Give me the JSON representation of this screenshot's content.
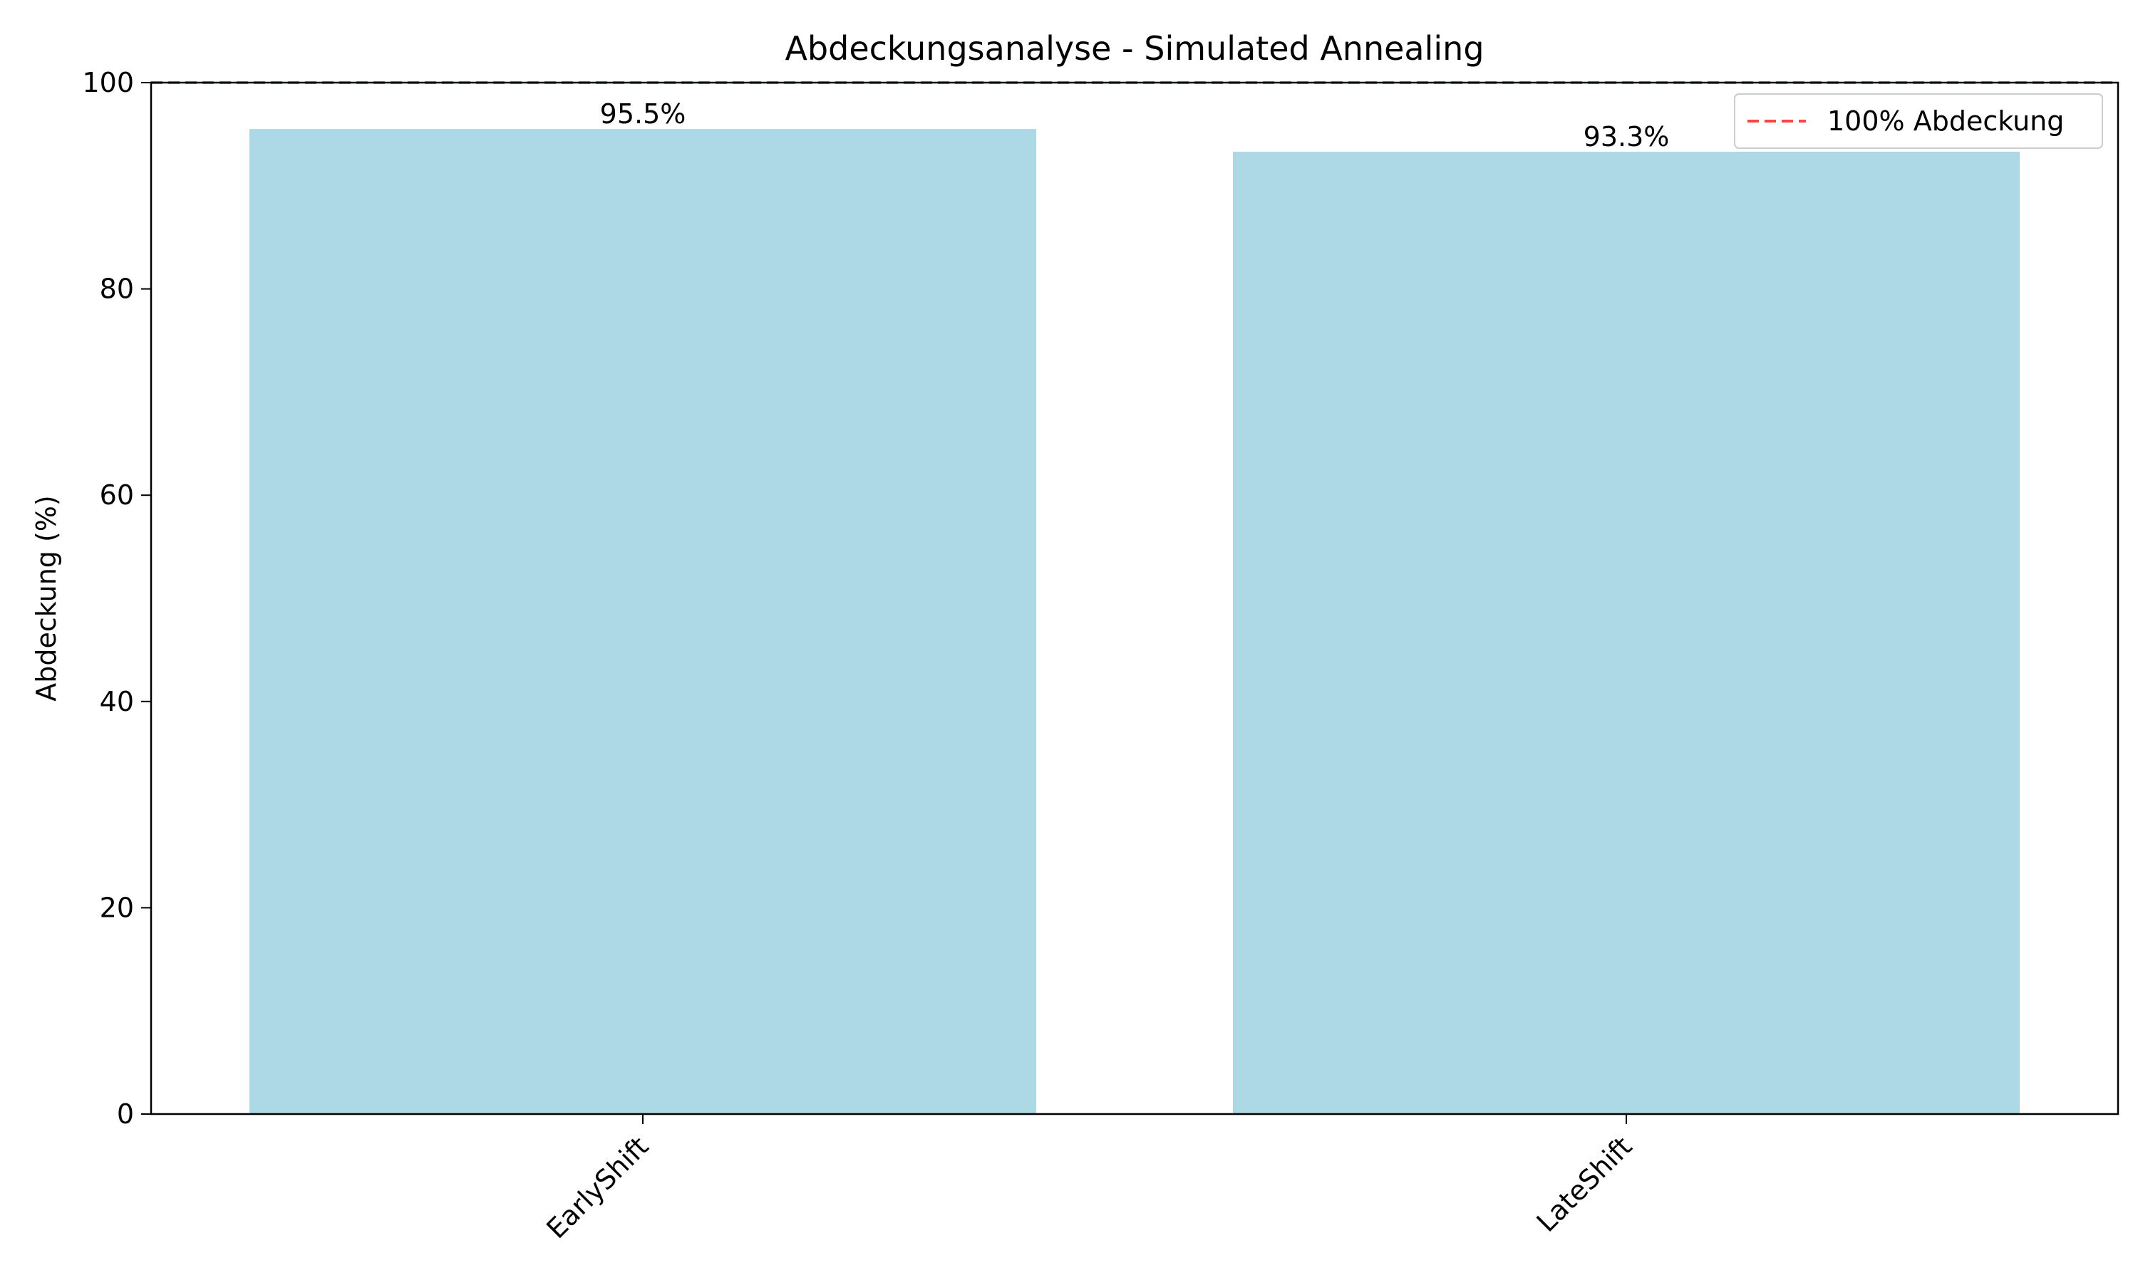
{
  "chart_data": {
    "type": "bar",
    "title": "Abdeckungsanalyse - Simulated Annealing",
    "xlabel": "",
    "ylabel": "Abdeckung (%)",
    "categories": [
      "EarlyShift",
      "LateShift"
    ],
    "values": [
      95.5,
      93.3
    ],
    "value_labels": [
      "95.5%",
      "93.3%"
    ],
    "ylim": [
      0,
      100
    ],
    "yticks": [
      0,
      20,
      40,
      60,
      80,
      100
    ],
    "ytick_labels": [
      "0",
      "20",
      "40",
      "60",
      "80",
      "100"
    ],
    "grid": false,
    "bar_color": "#add8e6",
    "reference_line": {
      "value": 100,
      "label": "100% Abdeckung",
      "color": "#ff4444",
      "style": "dashed"
    },
    "legend": {
      "position": "top-right",
      "entries": [
        "100% Abdeckung"
      ]
    }
  }
}
